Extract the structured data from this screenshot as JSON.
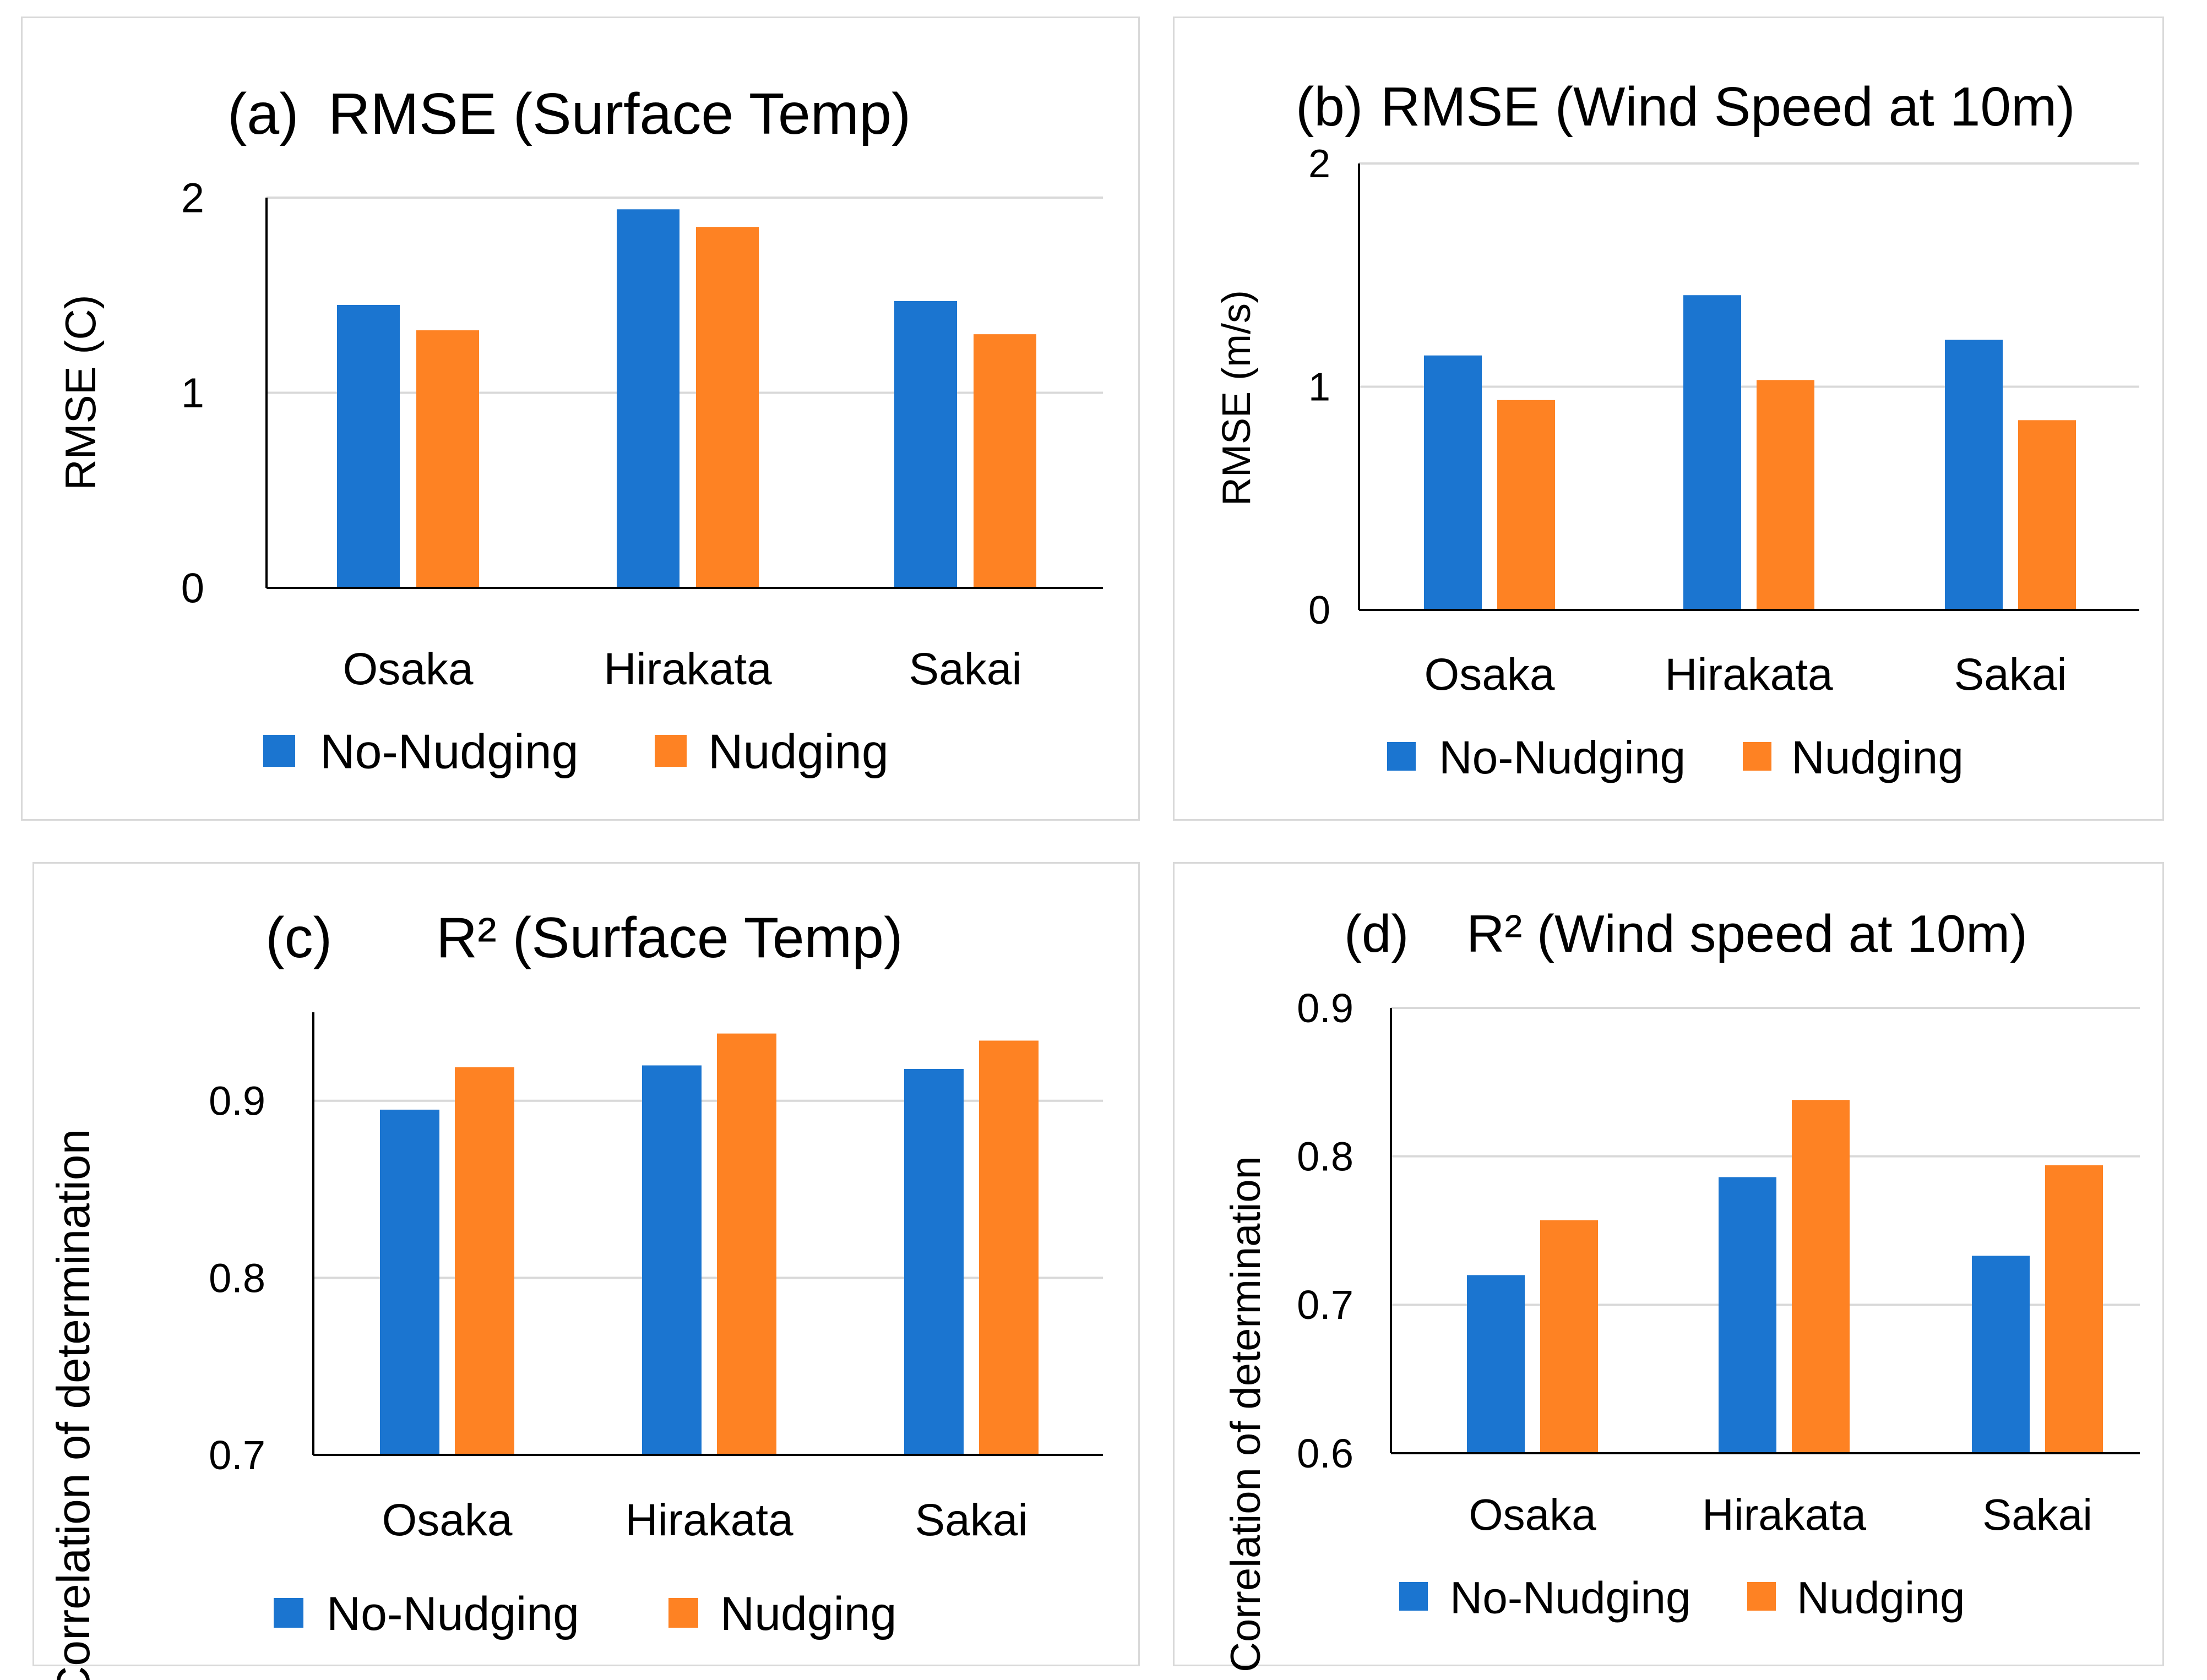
{
  "chart_data": [
    {
      "type": "bar",
      "panel_label": "(a)",
      "title": "RMSE (Surface Temp)",
      "ylabel": "RMSE (C)",
      "xlabel": "",
      "categories": [
        "Osaka",
        "Hirakata",
        "Sakai"
      ],
      "series": [
        {
          "name": "No-Nudging",
          "values": [
            1.45,
            1.94,
            1.47
          ]
        },
        {
          "name": "Nudging",
          "values": [
            1.32,
            1.85,
            1.3
          ]
        }
      ],
      "ylim": [
        0,
        2
      ],
      "yticks": [
        0,
        1,
        2
      ],
      "ytick_labels": [
        "0",
        "1",
        "2"
      ],
      "legend": "bottom"
    },
    {
      "type": "bar",
      "panel_label": "(b)",
      "title": "RMSE (Wind Speed at 10m)",
      "ylabel": "RMSE (m/s)",
      "xlabel": "",
      "categories": [
        "Osaka",
        "Hirakata",
        "Sakai"
      ],
      "series": [
        {
          "name": "No-Nudging",
          "values": [
            1.14,
            1.41,
            1.21
          ]
        },
        {
          "name": "Nudging",
          "values": [
            0.94,
            1.03,
            0.85
          ]
        }
      ],
      "ylim": [
        0,
        2
      ],
      "yticks": [
        0,
        1,
        2
      ],
      "ytick_labels": [
        "0",
        "1",
        "2"
      ],
      "legend": "bottom"
    },
    {
      "type": "bar",
      "panel_label": "(c)",
      "title": "R² (Surface  Temp)",
      "ylabel": "Correlation of determination",
      "xlabel": "",
      "categories": [
        "Osaka",
        "Hirakata",
        "Sakai"
      ],
      "series": [
        {
          "name": "No-Nudging",
          "values": [
            0.895,
            0.92,
            0.918
          ]
        },
        {
          "name": "Nudging",
          "values": [
            0.919,
            0.938,
            0.934
          ]
        }
      ],
      "ylim": [
        0.7,
        0.95
      ],
      "yticks": [
        0.7,
        0.8,
        0.9
      ],
      "ytick_labels": [
        "0.7",
        "0.8",
        "0.9"
      ],
      "legend": "bottom"
    },
    {
      "type": "bar",
      "panel_label": "(d)",
      "title": "R² (Wind speed at 10m)",
      "ylabel": "Correlation of determination",
      "xlabel": "",
      "categories": [
        "Osaka",
        "Hirakata",
        "Sakai"
      ],
      "series": [
        {
          "name": "No-Nudging",
          "values": [
            0.72,
            0.786,
            0.733
          ]
        },
        {
          "name": "Nudging",
          "values": [
            0.757,
            0.838,
            0.794
          ]
        }
      ],
      "ylim": [
        0.6,
        0.9
      ],
      "yticks": [
        0.6,
        0.7,
        0.8,
        0.9
      ],
      "ytick_labels": [
        "0.6",
        "0.7",
        "0.8",
        "0.9"
      ],
      "legend": "bottom"
    }
  ],
  "colors": {
    "No-Nudging": "#1b75d0",
    "Nudging": "#fe8223",
    "gridline": "#d9d9d9",
    "axis": "#000000",
    "panel_border": "#d9d9d9"
  }
}
